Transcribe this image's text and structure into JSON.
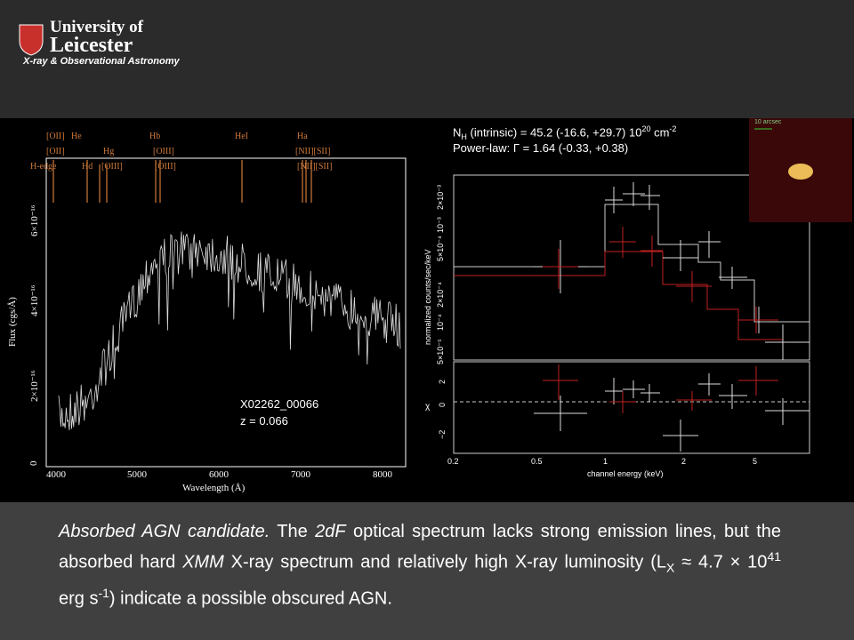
{
  "header": {
    "university": "University of",
    "name": "Leicester",
    "department": "X-ray & Observational Astronomy"
  },
  "optical": {
    "x_label": "Wavelength (Å)",
    "y_label": "Flux (cgs/Å)",
    "x_ticks": [
      "4000",
      "5000",
      "6000",
      "7000",
      "8000"
    ],
    "y_ticks": [
      "0",
      "2×10⁻¹⁶",
      "4×10⁻¹⁶",
      "6×10⁻¹⁶"
    ],
    "lines_row1": [
      "[OII]",
      "He",
      "Hb",
      "HeI",
      "Ha"
    ],
    "lines_row2": [
      "[OII]",
      "Hg",
      "[OIII]",
      "[NII][SII]"
    ],
    "lines_row3": [
      "H-edge",
      "Hd",
      "[OIII]",
      "[OIII]",
      "[NII][SII]"
    ],
    "object": "X02262_00066",
    "redshift": "z = 0.066"
  },
  "xray": {
    "nh": [
      "N",
      "H",
      " (intrinsic) = 45.2 (-16.6, +29.7) 10",
      "20",
      " cm",
      "-2"
    ],
    "powerlaw": "Power-law: Γ = 1.64 (-0.33, +0.38)",
    "y_label": "normalized counts/sec/keV",
    "y_ticks": [
      "5×10⁻⁵",
      "10⁻⁴",
      "2×10⁻⁴",
      "5×10⁻⁴",
      "10⁻³",
      "2×10⁻³"
    ],
    "resid_label": "χ",
    "resid_ticks": [
      "−2",
      "0",
      "2"
    ],
    "x_ticks": [
      "0.2",
      "0.5",
      "1",
      "2",
      "5"
    ],
    "x_label": "channel energy (keV)"
  },
  "image": {
    "scale": "10 arcsec"
  },
  "caption": [
    "Absorbed AGN candidate.",
    " The ",
    "2dF",
    " optical spectrum lacks strong emission lines, but the absorbed hard ",
    "XMM",
    " X-ray spectrum and relatively high X-ray luminosity (L",
    "X",
    " ≈ 4.7 × 10",
    "41",
    " erg s",
    "-1",
    ") indicate a possible obscured AGN."
  ]
}
